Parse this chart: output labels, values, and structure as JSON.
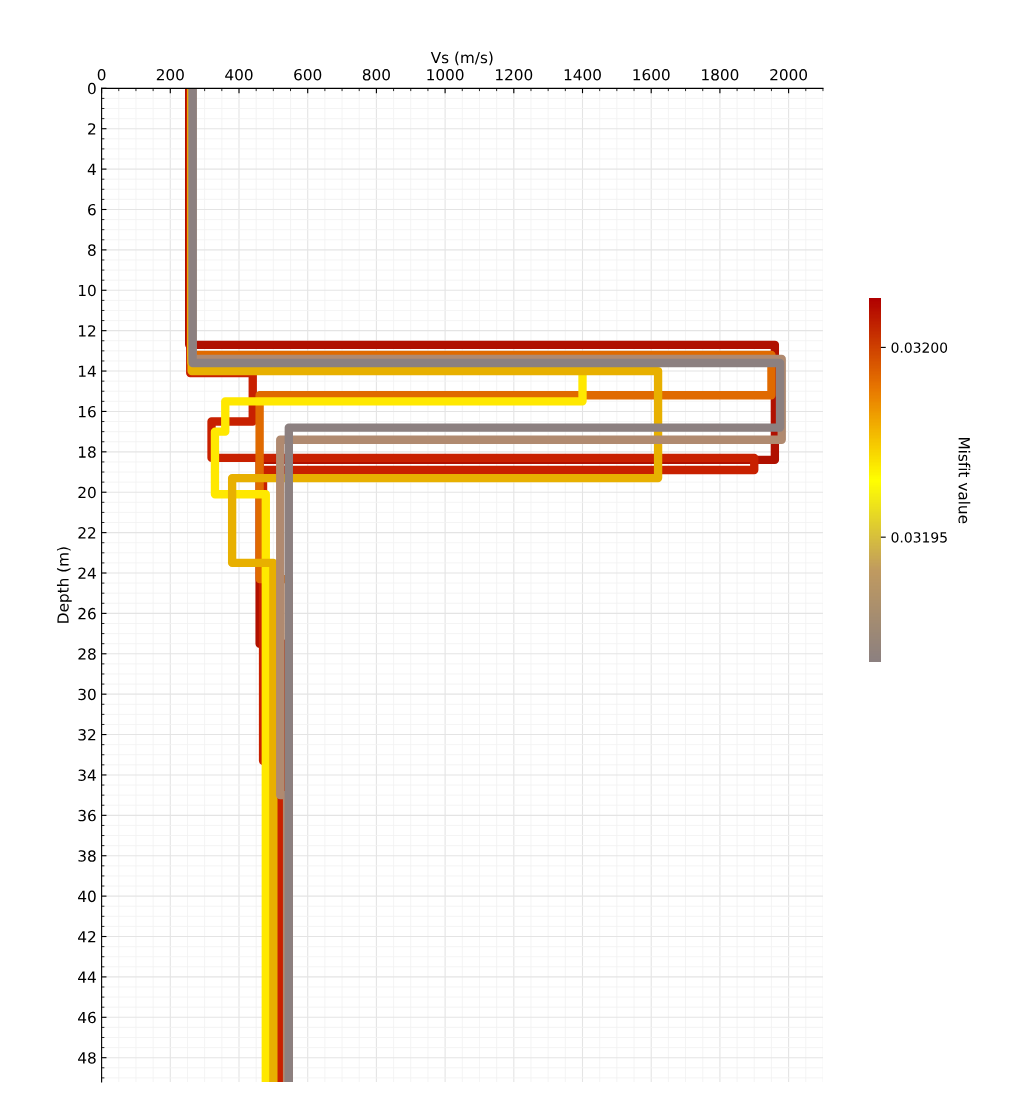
{
  "chart_data": {
    "type": "line",
    "xlabel": "Vs (m/s)",
    "ylabel": "Depth (m)",
    "clabel": "Misfit value",
    "xlim": [
      0,
      2100
    ],
    "xticks": [
      0,
      200,
      400,
      600,
      800,
      1000,
      1200,
      1400,
      1600,
      1800,
      2000
    ],
    "ylim": [
      49.2,
      0
    ],
    "yticks": [
      0,
      2,
      4,
      6,
      8,
      10,
      12,
      14,
      16,
      18,
      20,
      22,
      24,
      26,
      28,
      30,
      32,
      34,
      36,
      38,
      40,
      42,
      44,
      46,
      48
    ],
    "clim": [
      0.031917,
      0.032013
    ],
    "cticks": [
      {
        "value": 0.032,
        "label": "0.03200"
      },
      {
        "value": 0.03195,
        "label": "0.03195"
      }
    ],
    "grid": true,
    "line_style": "solid",
    "series": [
      {
        "color": "#b01000",
        "x": [
          255,
          255,
          1960,
          1960,
          460,
          460,
          530,
          530
        ],
        "values": [
          0,
          12.7,
          12.7,
          18.4,
          18.4,
          27.5,
          27.5,
          49.2
        ]
      },
      {
        "color": "#c82000",
        "x": [
          258,
          258,
          440,
          440,
          320,
          320,
          1900,
          1900,
          470,
          470,
          520,
          520
        ],
        "values": [
          0,
          14.1,
          14.1,
          16.5,
          16.5,
          18.3,
          18.3,
          18.9,
          18.9,
          33.3,
          33.3,
          49.2
        ]
      },
      {
        "color": "#e06a00",
        "x": [
          262,
          262,
          1950,
          1950,
          460,
          460,
          545,
          545
        ],
        "values": [
          0,
          13.2,
          13.2,
          15.2,
          15.2,
          24.3,
          24.3,
          49.2
        ]
      },
      {
        "color": "#ffe800",
        "x": [
          262,
          262,
          1400,
          1400,
          360,
          360,
          330,
          330,
          478,
          478
        ],
        "values": [
          0,
          13.6,
          13.6,
          15.5,
          15.5,
          17.0,
          17.0,
          20.1,
          20.1,
          49.2
        ]
      },
      {
        "color": "#e8b000",
        "x": [
          262,
          262,
          1620,
          1620,
          380,
          380,
          500,
          500
        ],
        "values": [
          0,
          14.0,
          14.0,
          19.3,
          19.3,
          23.5,
          23.5,
          49.2
        ]
      },
      {
        "color": "#b08a70",
        "x": [
          265,
          265,
          1980,
          1980,
          520,
          520,
          540,
          540
        ],
        "values": [
          0,
          13.4,
          13.4,
          17.4,
          17.4,
          35.0,
          35.0,
          49.2
        ]
      },
      {
        "color": "#8c8080",
        "x": [
          265,
          265,
          1975,
          1975,
          545,
          545
        ],
        "values": [
          0,
          13.6,
          13.6,
          16.8,
          16.8,
          49.2
        ]
      }
    ]
  }
}
